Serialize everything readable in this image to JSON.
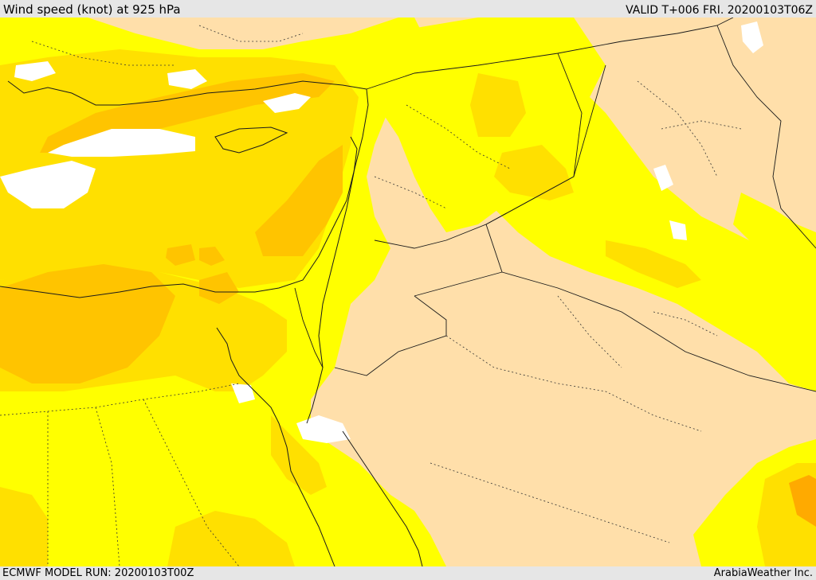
{
  "header": {
    "title": "Wind speed (knot) at 925 hPa",
    "valid": "VALID T+006 FRI. 20200103T06Z"
  },
  "footer": {
    "model_run": "ECMWF MODEL RUN: 20200103T00Z",
    "credit": "ArabiaWeather Inc."
  },
  "map": {
    "variable": "Wind speed",
    "level": "925 hPa",
    "unit": "knot",
    "colors": {
      "calm": "#ffdfaa",
      "band_1": "#ffff00",
      "band_2": "#ffe000",
      "band_3": "#ffc400",
      "band_4": "#ffaa00",
      "no_data": "#ffffff",
      "lines": "#1a1a1a"
    }
  }
}
